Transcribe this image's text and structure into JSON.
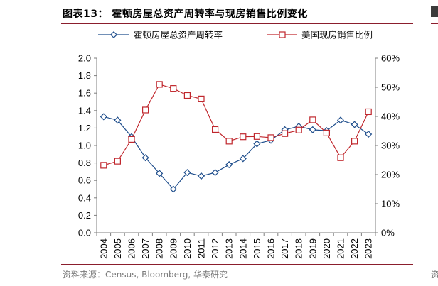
{
  "header": {
    "title": "图表13：  霍顿房屋总资产周转率与现房销售比例变化"
  },
  "footer": {
    "source": "资料来源：Census, Bloomberg, 华泰研究"
  },
  "edge": {
    "fragment_char": "资"
  },
  "chart_data": {
    "type": "line",
    "title": "",
    "categories": [
      "2004",
      "2005",
      "2006",
      "2007",
      "2008",
      "2009",
      "2010",
      "2011",
      "2012",
      "2013",
      "2014",
      "2015",
      "2016",
      "2017",
      "2018",
      "2019",
      "2020",
      "2021",
      "2022",
      "2023"
    ],
    "series": [
      {
        "name": "霍顿房屋总资产周转率",
        "axis": "left",
        "color": "#1f4e8c",
        "marker": "diamond",
        "values": [
          1.33,
          1.29,
          1.1,
          0.86,
          0.68,
          0.5,
          0.69,
          0.65,
          0.69,
          0.78,
          0.85,
          1.02,
          1.06,
          1.18,
          1.22,
          1.18,
          1.17,
          1.29,
          1.24,
          1.13
        ]
      },
      {
        "name": "美国现房销售比例",
        "axis": "right",
        "color": "#c0272d",
        "marker": "square",
        "values": [
          23.2,
          24.6,
          32.1,
          42.2,
          51.0,
          49.6,
          47.2,
          46.0,
          35.5,
          31.5,
          33.0,
          33.1,
          32.7,
          34.1,
          35.3,
          38.8,
          34.3,
          25.8,
          31.5,
          41.6
        ]
      }
    ],
    "y_left": {
      "min": 0,
      "max": 2,
      "step": 0.2,
      "ticks": [
        "0.0",
        "0.2",
        "0.4",
        "0.6",
        "0.8",
        "1.0",
        "1.2",
        "1.4",
        "1.6",
        "1.8",
        "2.0"
      ]
    },
    "y_right": {
      "min": 0,
      "max": 60,
      "step": 10,
      "ticks": [
        "0%",
        "10%",
        "20%",
        "30%",
        "40%",
        "50%",
        "60%"
      ]
    },
    "grid": false,
    "legend": "top"
  }
}
